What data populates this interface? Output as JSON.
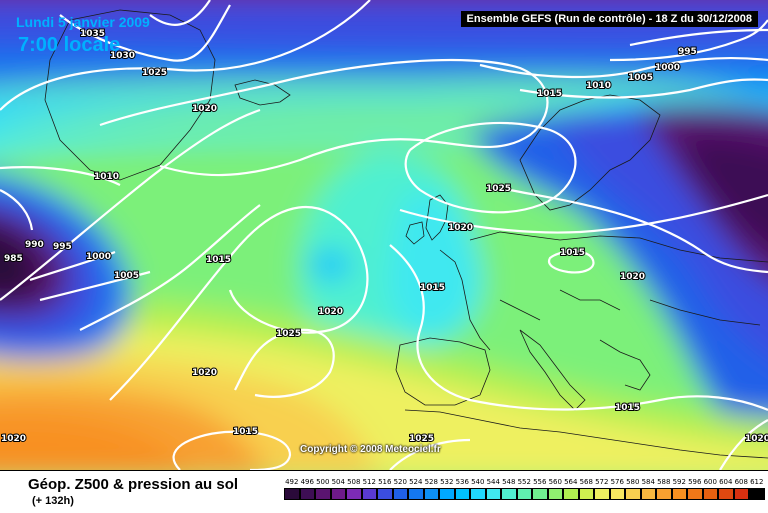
{
  "header": {
    "date": "Lundi 5 janvier 2009",
    "local_time": "7:00 locale",
    "run_info": "Ensemble GEFS (Run de contrôle)  -  18 Z du 30/12/2008"
  },
  "footer": {
    "title": "Géop. Z500 & pression au sol",
    "subtitle": "(+ 132h)",
    "copyright": "Copyright © 2008 Meteociel.fr"
  },
  "isobar_labels": [
    "1035",
    "1030",
    "1025",
    "1020",
    "1010",
    "995",
    "990",
    "985",
    "1000",
    "1005",
    "1015",
    "1020",
    "1025",
    "1020",
    "1015",
    "1020",
    "1025",
    "1015",
    "1015",
    "1020",
    "1015",
    "995",
    "1000",
    "1005",
    "1010",
    "1015",
    "1025",
    "1020",
    "1020"
  ],
  "scale": {
    "ticks": [
      "492",
      "496",
      "500",
      "504",
      "508",
      "512",
      "516",
      "520",
      "524",
      "528",
      "532",
      "536",
      "540",
      "544",
      "548",
      "552",
      "556",
      "560",
      "564",
      "568",
      "572",
      "576",
      "580",
      "584",
      "588",
      "592",
      "596",
      "600",
      "604",
      "608",
      "612"
    ],
    "colors": [
      "#2a0a3a",
      "#3e0e55",
      "#5a1470",
      "#6e1a8a",
      "#7c2bb5",
      "#5a3ad0",
      "#3b4de0",
      "#2060e8",
      "#1478f0",
      "#0d90f5",
      "#00a8ff",
      "#00c0ff",
      "#20d8ff",
      "#40e8f0",
      "#50f0d0",
      "#60f0b0",
      "#70f090",
      "#90f070",
      "#b0f050",
      "#d0f050",
      "#eef060",
      "#f8e860",
      "#f8d050",
      "#f8b840",
      "#f8a030",
      "#f89020",
      "#f07818",
      "#e86010",
      "#e04810",
      "#d83010",
      "#000000"
    ]
  }
}
